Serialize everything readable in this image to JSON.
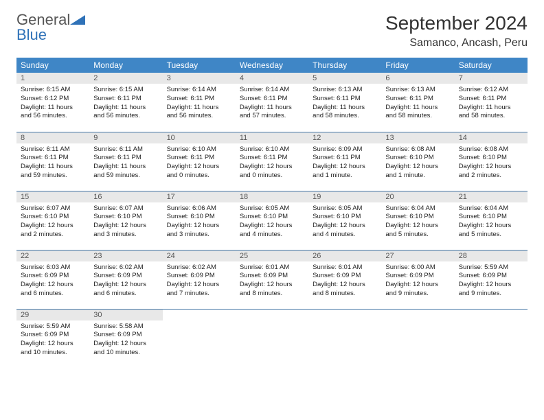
{
  "brand": {
    "name1": "General",
    "name2": "Blue",
    "logo_color": "#2f72b8"
  },
  "title": "September 2024",
  "location": "Samanco, Ancash, Peru",
  "colors": {
    "header_bg": "#3f86c6",
    "header_text": "#ffffff",
    "daynum_bg": "#e8e8e8",
    "row_border": "#3f72a3",
    "body_bg": "#ffffff",
    "text": "#222222"
  },
  "day_headers": [
    "Sunday",
    "Monday",
    "Tuesday",
    "Wednesday",
    "Thursday",
    "Friday",
    "Saturday"
  ],
  "weeks": [
    [
      {
        "num": "1",
        "sunrise": "Sunrise: 6:15 AM",
        "sunset": "Sunset: 6:12 PM",
        "daylight": "Daylight: 11 hours and 56 minutes."
      },
      {
        "num": "2",
        "sunrise": "Sunrise: 6:15 AM",
        "sunset": "Sunset: 6:11 PM",
        "daylight": "Daylight: 11 hours and 56 minutes."
      },
      {
        "num": "3",
        "sunrise": "Sunrise: 6:14 AM",
        "sunset": "Sunset: 6:11 PM",
        "daylight": "Daylight: 11 hours and 56 minutes."
      },
      {
        "num": "4",
        "sunrise": "Sunrise: 6:14 AM",
        "sunset": "Sunset: 6:11 PM",
        "daylight": "Daylight: 11 hours and 57 minutes."
      },
      {
        "num": "5",
        "sunrise": "Sunrise: 6:13 AM",
        "sunset": "Sunset: 6:11 PM",
        "daylight": "Daylight: 11 hours and 58 minutes."
      },
      {
        "num": "6",
        "sunrise": "Sunrise: 6:13 AM",
        "sunset": "Sunset: 6:11 PM",
        "daylight": "Daylight: 11 hours and 58 minutes."
      },
      {
        "num": "7",
        "sunrise": "Sunrise: 6:12 AM",
        "sunset": "Sunset: 6:11 PM",
        "daylight": "Daylight: 11 hours and 58 minutes."
      }
    ],
    [
      {
        "num": "8",
        "sunrise": "Sunrise: 6:11 AM",
        "sunset": "Sunset: 6:11 PM",
        "daylight": "Daylight: 11 hours and 59 minutes."
      },
      {
        "num": "9",
        "sunrise": "Sunrise: 6:11 AM",
        "sunset": "Sunset: 6:11 PM",
        "daylight": "Daylight: 11 hours and 59 minutes."
      },
      {
        "num": "10",
        "sunrise": "Sunrise: 6:10 AM",
        "sunset": "Sunset: 6:11 PM",
        "daylight": "Daylight: 12 hours and 0 minutes."
      },
      {
        "num": "11",
        "sunrise": "Sunrise: 6:10 AM",
        "sunset": "Sunset: 6:11 PM",
        "daylight": "Daylight: 12 hours and 0 minutes."
      },
      {
        "num": "12",
        "sunrise": "Sunrise: 6:09 AM",
        "sunset": "Sunset: 6:11 PM",
        "daylight": "Daylight: 12 hours and 1 minute."
      },
      {
        "num": "13",
        "sunrise": "Sunrise: 6:08 AM",
        "sunset": "Sunset: 6:10 PM",
        "daylight": "Daylight: 12 hours and 1 minute."
      },
      {
        "num": "14",
        "sunrise": "Sunrise: 6:08 AM",
        "sunset": "Sunset: 6:10 PM",
        "daylight": "Daylight: 12 hours and 2 minutes."
      }
    ],
    [
      {
        "num": "15",
        "sunrise": "Sunrise: 6:07 AM",
        "sunset": "Sunset: 6:10 PM",
        "daylight": "Daylight: 12 hours and 2 minutes."
      },
      {
        "num": "16",
        "sunrise": "Sunrise: 6:07 AM",
        "sunset": "Sunset: 6:10 PM",
        "daylight": "Daylight: 12 hours and 3 minutes."
      },
      {
        "num": "17",
        "sunrise": "Sunrise: 6:06 AM",
        "sunset": "Sunset: 6:10 PM",
        "daylight": "Daylight: 12 hours and 3 minutes."
      },
      {
        "num": "18",
        "sunrise": "Sunrise: 6:05 AM",
        "sunset": "Sunset: 6:10 PM",
        "daylight": "Daylight: 12 hours and 4 minutes."
      },
      {
        "num": "19",
        "sunrise": "Sunrise: 6:05 AM",
        "sunset": "Sunset: 6:10 PM",
        "daylight": "Daylight: 12 hours and 4 minutes."
      },
      {
        "num": "20",
        "sunrise": "Sunrise: 6:04 AM",
        "sunset": "Sunset: 6:10 PM",
        "daylight": "Daylight: 12 hours and 5 minutes."
      },
      {
        "num": "21",
        "sunrise": "Sunrise: 6:04 AM",
        "sunset": "Sunset: 6:10 PM",
        "daylight": "Daylight: 12 hours and 5 minutes."
      }
    ],
    [
      {
        "num": "22",
        "sunrise": "Sunrise: 6:03 AM",
        "sunset": "Sunset: 6:09 PM",
        "daylight": "Daylight: 12 hours and 6 minutes."
      },
      {
        "num": "23",
        "sunrise": "Sunrise: 6:02 AM",
        "sunset": "Sunset: 6:09 PM",
        "daylight": "Daylight: 12 hours and 6 minutes."
      },
      {
        "num": "24",
        "sunrise": "Sunrise: 6:02 AM",
        "sunset": "Sunset: 6:09 PM",
        "daylight": "Daylight: 12 hours and 7 minutes."
      },
      {
        "num": "25",
        "sunrise": "Sunrise: 6:01 AM",
        "sunset": "Sunset: 6:09 PM",
        "daylight": "Daylight: 12 hours and 8 minutes."
      },
      {
        "num": "26",
        "sunrise": "Sunrise: 6:01 AM",
        "sunset": "Sunset: 6:09 PM",
        "daylight": "Daylight: 12 hours and 8 minutes."
      },
      {
        "num": "27",
        "sunrise": "Sunrise: 6:00 AM",
        "sunset": "Sunset: 6:09 PM",
        "daylight": "Daylight: 12 hours and 9 minutes."
      },
      {
        "num": "28",
        "sunrise": "Sunrise: 5:59 AM",
        "sunset": "Sunset: 6:09 PM",
        "daylight": "Daylight: 12 hours and 9 minutes."
      }
    ],
    [
      {
        "num": "29",
        "sunrise": "Sunrise: 5:59 AM",
        "sunset": "Sunset: 6:09 PM",
        "daylight": "Daylight: 12 hours and 10 minutes."
      },
      {
        "num": "30",
        "sunrise": "Sunrise: 5:58 AM",
        "sunset": "Sunset: 6:09 PM",
        "daylight": "Daylight: 12 hours and 10 minutes."
      },
      null,
      null,
      null,
      null,
      null
    ]
  ]
}
